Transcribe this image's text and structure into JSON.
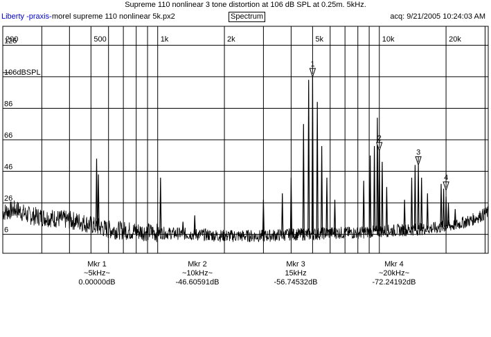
{
  "window": {
    "title": "Supreme 110 nonlinear 3 tone distortion at 106 dB SPL at 0.25m. 5kHz.",
    "brand": "Liberty -praxis-",
    "file": "morel supreme 110 nonlinear 5k.px2",
    "mode_button": "Spectrum",
    "acq": "acq: 9/21/2005 10:24:03 AM"
  },
  "chart_data": {
    "type": "line",
    "x_scale": "log",
    "xlim": [
      200,
      31000
    ],
    "ylim": [
      -6,
      138
    ],
    "grid": true,
    "x_ticks": [
      {
        "v": 200,
        "label": "200"
      },
      {
        "v": 500,
        "label": "500"
      },
      {
        "v": 1000,
        "label": "1k"
      },
      {
        "v": 2000,
        "label": "2k"
      },
      {
        "v": 5000,
        "label": "5k"
      },
      {
        "v": 10000,
        "label": "10k"
      },
      {
        "v": 20000,
        "label": "20k"
      }
    ],
    "y_ticks": [
      {
        "v": 126,
        "label": "126"
      },
      {
        "v": 106,
        "label": "106dBSPL"
      },
      {
        "v": 86,
        "label": "86"
      },
      {
        "v": 66,
        "label": "66"
      },
      {
        "v": 46,
        "label": "46"
      },
      {
        "v": 26,
        "label": "26"
      },
      {
        "v": 6,
        "label": "6"
      }
    ],
    "reference_level": 106,
    "noise_floor": [
      [
        200,
        20
      ],
      [
        230,
        22
      ],
      [
        260,
        18
      ],
      [
        300,
        17
      ],
      [
        350,
        16
      ],
      [
        400,
        15
      ],
      [
        450,
        14
      ],
      [
        500,
        12
      ],
      [
        600,
        9
      ],
      [
        800,
        8
      ],
      [
        1000,
        7
      ],
      [
        1500,
        6
      ],
      [
        2000,
        5
      ],
      [
        3000,
        5
      ],
      [
        4000,
        6
      ],
      [
        5000,
        6
      ],
      [
        6000,
        7
      ],
      [
        8000,
        7
      ],
      [
        10000,
        8
      ],
      [
        14000,
        9
      ],
      [
        18000,
        10
      ],
      [
        22000,
        12
      ],
      [
        26000,
        15
      ],
      [
        31000,
        20
      ]
    ],
    "peaks": [
      [
        530,
        54
      ],
      [
        540,
        44
      ],
      [
        1030,
        42
      ],
      [
        1300,
        14
      ],
      [
        1470,
        18
      ],
      [
        3000,
        28
      ],
      [
        3650,
        32
      ],
      [
        4000,
        42
      ],
      [
        4550,
        76
      ],
      [
        4800,
        104
      ],
      [
        5000,
        106
      ],
      [
        5250,
        90
      ],
      [
        5500,
        62
      ],
      [
        5800,
        42
      ],
      [
        6300,
        28
      ],
      [
        8500,
        40
      ],
      [
        9100,
        56
      ],
      [
        9500,
        62
      ],
      [
        9800,
        80
      ],
      [
        10000,
        66
      ],
      [
        10300,
        52
      ],
      [
        10800,
        36
      ],
      [
        13000,
        28
      ],
      [
        14000,
        42
      ],
      [
        14500,
        50
      ],
      [
        15000,
        50
      ],
      [
        15500,
        42
      ],
      [
        16500,
        32
      ],
      [
        19000,
        38
      ],
      [
        19500,
        35
      ],
      [
        20000,
        30
      ],
      [
        20500,
        26
      ],
      [
        22000,
        22
      ]
    ],
    "markers": [
      {
        "num": "1",
        "x": 5000,
        "y": 106
      },
      {
        "num": "2",
        "x": 10000,
        "y": 59
      },
      {
        "num": "3",
        "x": 15000,
        "y": 50
      },
      {
        "num": "4",
        "x": 20000,
        "y": 34
      }
    ]
  },
  "markers_readout": [
    {
      "name": "Mkr 1",
      "freq": "~5kHz~",
      "value": "0.00000dB"
    },
    {
      "name": "Mkr 2",
      "freq": "~10kHz~",
      "value": "-46.60591dB"
    },
    {
      "name": "Mkr 3",
      "freq": "15kHz",
      "value": "-56.74532dB"
    },
    {
      "name": "Mkr 4",
      "freq": "~20kHz~",
      "value": "-72.24192dB"
    }
  ]
}
